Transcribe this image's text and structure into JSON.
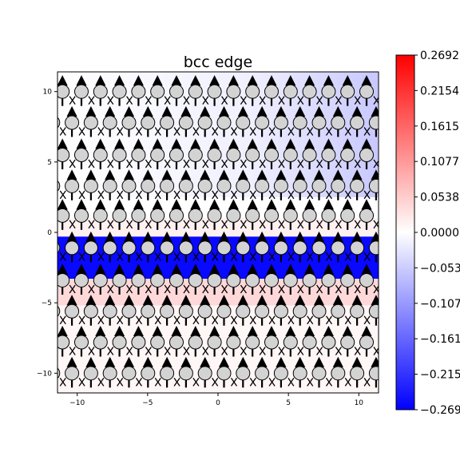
{
  "chart_data": {
    "type": "heatmap",
    "title": "bcc edge",
    "xlabel": "",
    "ylabel": "",
    "xlim": [
      -11.4,
      11.4
    ],
    "ylim": [
      -11.4,
      11.4
    ],
    "xticks": [
      -10,
      -5,
      0,
      5,
      10
    ],
    "yticks": [
      10,
      5,
      0,
      -5,
      -10
    ],
    "xtick_labels": [
      "−10",
      "−5",
      "0",
      "5",
      "10"
    ],
    "ytick_labels": [
      "10",
      "5",
      "0",
      "−5",
      "−10"
    ],
    "colorbar": {
      "colormap": "bwr",
      "range": [
        -0.2692,
        0.2692
      ],
      "ticks": [
        0.2692,
        0.2154,
        0.1615,
        0.1077,
        0.0538,
        0.0,
        -0.0538,
        -0.1077,
        -0.1615,
        -0.2154,
        -0.2692
      ],
      "tick_labels": [
        "0.2692",
        "0.2154",
        "0.1615",
        "0.1077",
        "0.0538",
        "0.0000",
        "−0.0538",
        "−0.1077",
        "−0.1615",
        "−0.2154",
        "−0.2692"
      ],
      "colors": {
        "low": "#0000ff",
        "mid": "#ffffff",
        "high": "#ff0000"
      }
    },
    "atom_rows_y": [
      10,
      7.8,
      5.5,
      3.3,
      1.2,
      -1.1,
      -3.4,
      -5.6,
      -7.8,
      -10.0
    ],
    "atom_spacing_x": 1.35,
    "atom_offset_x": 0.0,
    "strain_field": [
      {
        "y_range": [
          2.5,
          11.4
        ],
        "value": -0.03,
        "note_x_gradient": true
      },
      {
        "y_range": [
          -0.3,
          1.0
        ],
        "value": 0.015
      },
      {
        "y_range": [
          -3.3,
          -0.3
        ],
        "value": -0.26
      },
      {
        "y_range": [
          -5.2,
          -3.3
        ],
        "value": 0.04
      },
      {
        "y_range": [
          -11.4,
          -5.2
        ],
        "value": 0.01
      }
    ],
    "grid": false,
    "legend": "none"
  }
}
